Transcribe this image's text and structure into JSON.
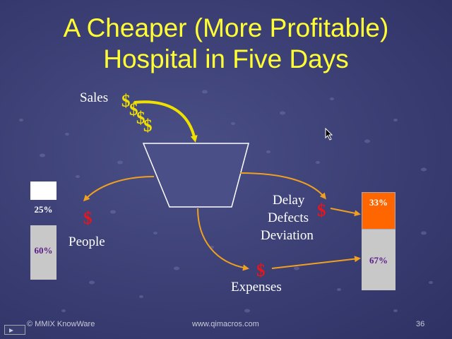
{
  "slide": {
    "title_line1": "A Cheaper (More Profitable)",
    "title_line2": "Hospital in Five Days",
    "sales_label": "Sales",
    "people_label": "People",
    "delay_label": "Delay",
    "defects_label": "Defects",
    "deviation_label": "Deviation",
    "expenses_label": "Expenses",
    "dollar": "$",
    "left_bar": {
      "top_pct": "25%",
      "bottom_pct": "60%"
    },
    "right_bar": {
      "top_pct": "33%",
      "bottom_pct": "67%"
    },
    "colors": {
      "title": "#ffff33",
      "dollar_red": "#e8151b",
      "dollar_gold": "#f0e000",
      "arrow": "#f0a020",
      "bar_orange": "#ff6600"
    }
  },
  "footer": {
    "copyright": "© MMIX KnowWare",
    "website": "www.qimacros.com",
    "page_number": "36"
  }
}
